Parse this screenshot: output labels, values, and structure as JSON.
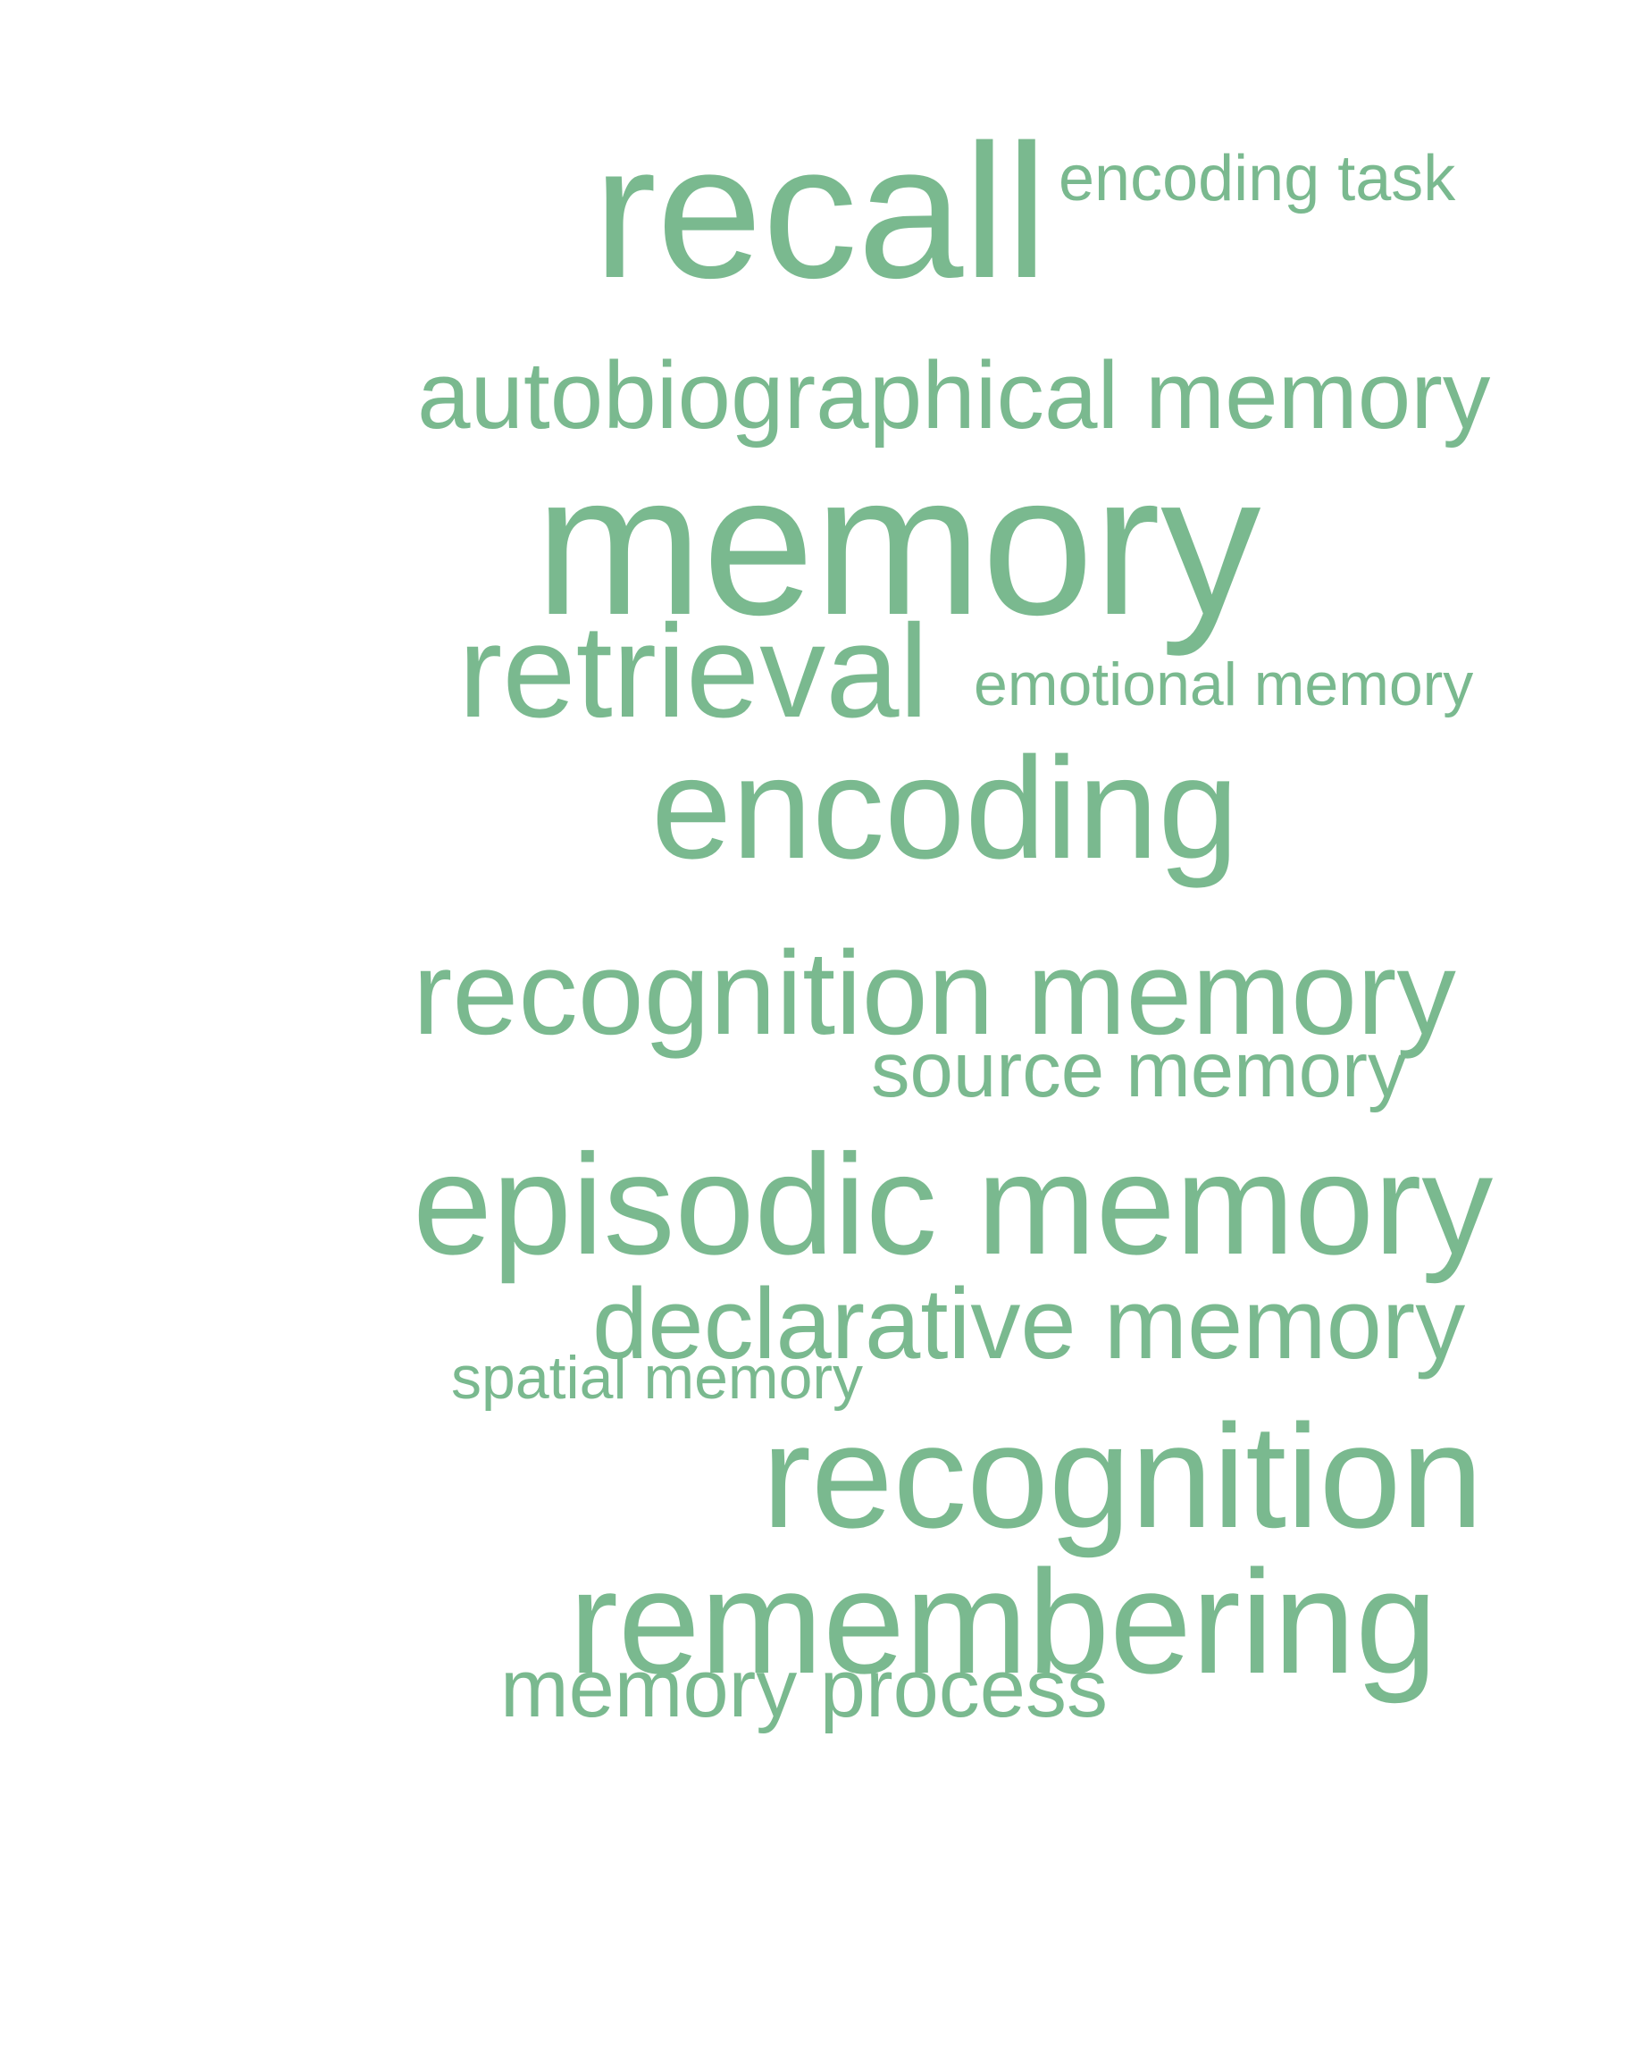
{
  "colors": {
    "background": "#ffffff",
    "word": "#7ab98f"
  },
  "words": {
    "recall": "recall",
    "encoding_task": "encoding task",
    "autobiographical_memory": "autobiographical memory",
    "memory": "memory",
    "retrieval": "retrieval",
    "emotional_memory": "emotional memory",
    "encoding": "encoding",
    "recognition_memory": "recognition memory",
    "source_memory": "source memory",
    "episodic_memory": "episodic memory",
    "declarative_memory": "declarative memory",
    "spatial_memory": "spatial memory",
    "recognition": "recognition",
    "remembering": "remembering",
    "memory_process": "memory process"
  }
}
